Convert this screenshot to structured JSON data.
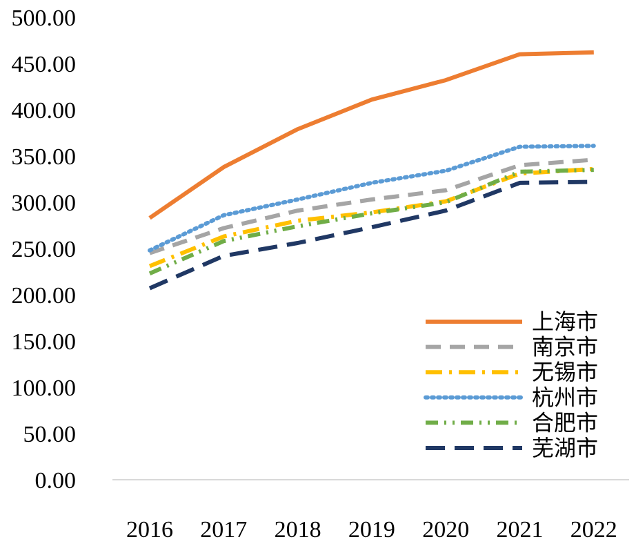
{
  "chart_data": {
    "type": "line",
    "title": "",
    "xlabel": "",
    "ylabel": "",
    "categories": [
      "2016",
      "2017",
      "2018",
      "2019",
      "2020",
      "2021",
      "2022"
    ],
    "ylim": [
      0,
      500
    ],
    "y_ticks": [
      "0.00",
      "50.00",
      "100.00",
      "150.00",
      "200.00",
      "250.00",
      "300.00",
      "350.00",
      "400.00",
      "450.00",
      "500.00"
    ],
    "grid": false,
    "legend_position": "bottom-right",
    "series": [
      {
        "name": "上海市",
        "color": "#ED7D31",
        "style": "solid",
        "values": [
          283,
          338,
          379,
          411,
          432,
          460,
          462
        ]
      },
      {
        "name": "南京市",
        "color": "#A5A5A5",
        "style": "dash",
        "values": [
          245,
          272,
          291,
          303,
          313,
          340,
          346
        ]
      },
      {
        "name": "无锡市",
        "color": "#FFC000",
        "style": "dashdot",
        "values": [
          231,
          263,
          280,
          289,
          301,
          331,
          336
        ]
      },
      {
        "name": "杭州市",
        "color": "#5B9BD5",
        "style": "dot",
        "values": [
          248,
          286,
          303,
          321,
          334,
          360,
          361
        ]
      },
      {
        "name": "合肥市",
        "color": "#70AD47",
        "style": "dashdotdot",
        "values": [
          223,
          258,
          274,
          288,
          300,
          333,
          335
        ]
      },
      {
        "name": "芜湖市",
        "color": "#203864",
        "style": "longdash",
        "values": [
          207,
          242,
          256,
          273,
          291,
          321,
          322
        ]
      }
    ]
  }
}
